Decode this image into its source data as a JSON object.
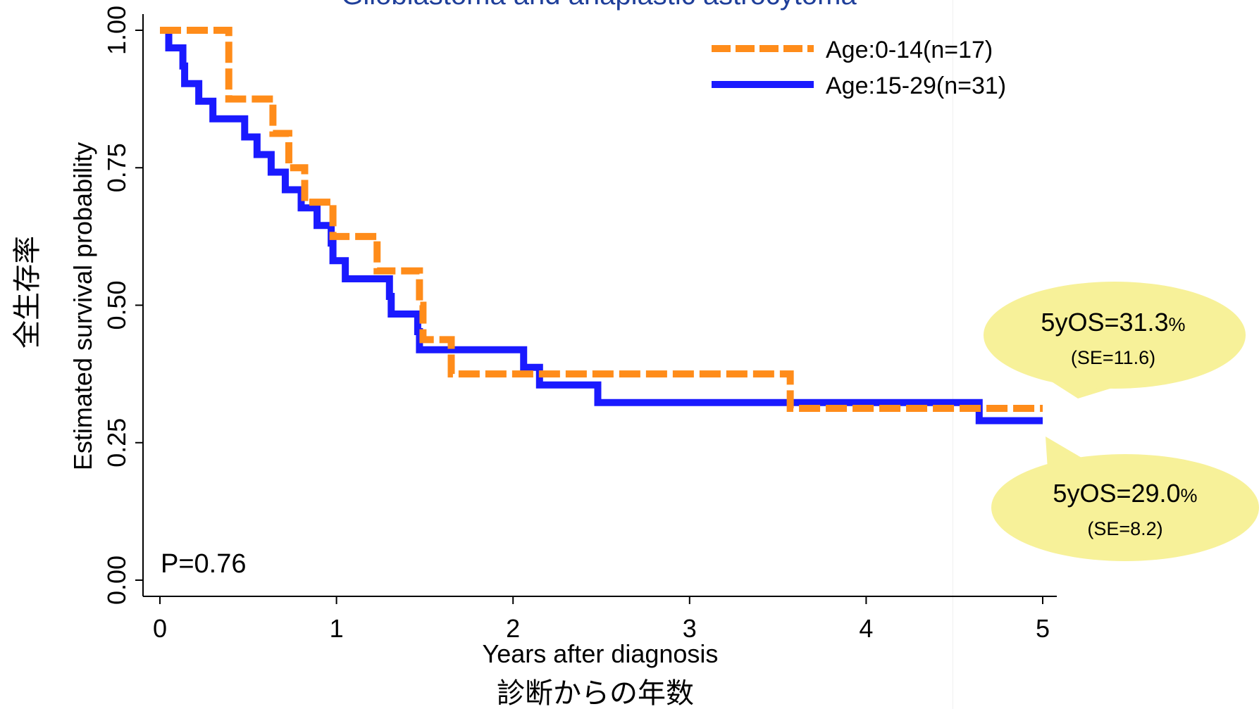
{
  "chart_data": {
    "type": "line",
    "title": "Glioblastoma and anaplastic astrocytoma",
    "xlabel": "Years after diagnosis",
    "xlabel_jp": "診断からの年数",
    "ylabel": "Estimated survival probability",
    "ylabel_jp": "全生存率",
    "xlim": [
      0,
      5
    ],
    "ylim": [
      0,
      1
    ],
    "x_ticks": [
      0,
      1,
      2,
      3,
      4,
      5
    ],
    "x_tick_labels": [
      "0",
      "1",
      "2",
      "3",
      "4",
      "5"
    ],
    "y_ticks": [
      0,
      0.25,
      0.5,
      0.75,
      1.0
    ],
    "y_tick_labels": [
      "0.00",
      "0.25",
      "0.50",
      "0.75",
      "1.00"
    ],
    "grid": false,
    "legend_position": "top-right",
    "series": [
      {
        "name": "Age:0-14(n=17)",
        "color": "#ff8c1a",
        "style": "dashed",
        "steps": [
          [
            0,
            1.0
          ],
          [
            0.39,
            0.875
          ],
          [
            0.64,
            0.8125
          ],
          [
            0.73,
            0.75
          ],
          [
            0.82,
            0.6875
          ],
          [
            0.98,
            0.625
          ],
          [
            1.23,
            0.5625
          ],
          [
            1.47,
            0.5
          ],
          [
            1.49,
            0.4375
          ],
          [
            1.65,
            0.375
          ],
          [
            3.57,
            0.3125
          ],
          [
            5.0,
            0.3125
          ]
        ]
      },
      {
        "name": "Age:15-29(n=31)",
        "color": "#1a1aff",
        "style": "solid",
        "steps": [
          [
            0,
            1.0
          ],
          [
            0.05,
            0.968
          ],
          [
            0.13,
            0.935
          ],
          [
            0.14,
            0.903
          ],
          [
            0.22,
            0.871
          ],
          [
            0.3,
            0.839
          ],
          [
            0.48,
            0.806
          ],
          [
            0.55,
            0.774
          ],
          [
            0.63,
            0.742
          ],
          [
            0.71,
            0.71
          ],
          [
            0.8,
            0.677
          ],
          [
            0.89,
            0.645
          ],
          [
            0.97,
            0.613
          ],
          [
            0.98,
            0.581
          ],
          [
            1.05,
            0.548
          ],
          [
            1.3,
            0.516
          ],
          [
            1.31,
            0.484
          ],
          [
            1.46,
            0.452
          ],
          [
            1.47,
            0.419
          ],
          [
            2.06,
            0.387
          ],
          [
            2.15,
            0.355
          ],
          [
            2.48,
            0.323
          ],
          [
            4.64,
            0.29
          ],
          [
            5.0,
            0.29
          ]
        ]
      }
    ],
    "annotations": {
      "pvalue": "P=0.76",
      "callout_orange": {
        "main": "5yOS=31.3",
        "pct": "%",
        "se": "(SE=11.6)"
      },
      "callout_blue": {
        "main": "5yOS=29.0",
        "pct": "%",
        "se": "(SE=8.2)"
      }
    },
    "callout_color": "#f7f199"
  }
}
